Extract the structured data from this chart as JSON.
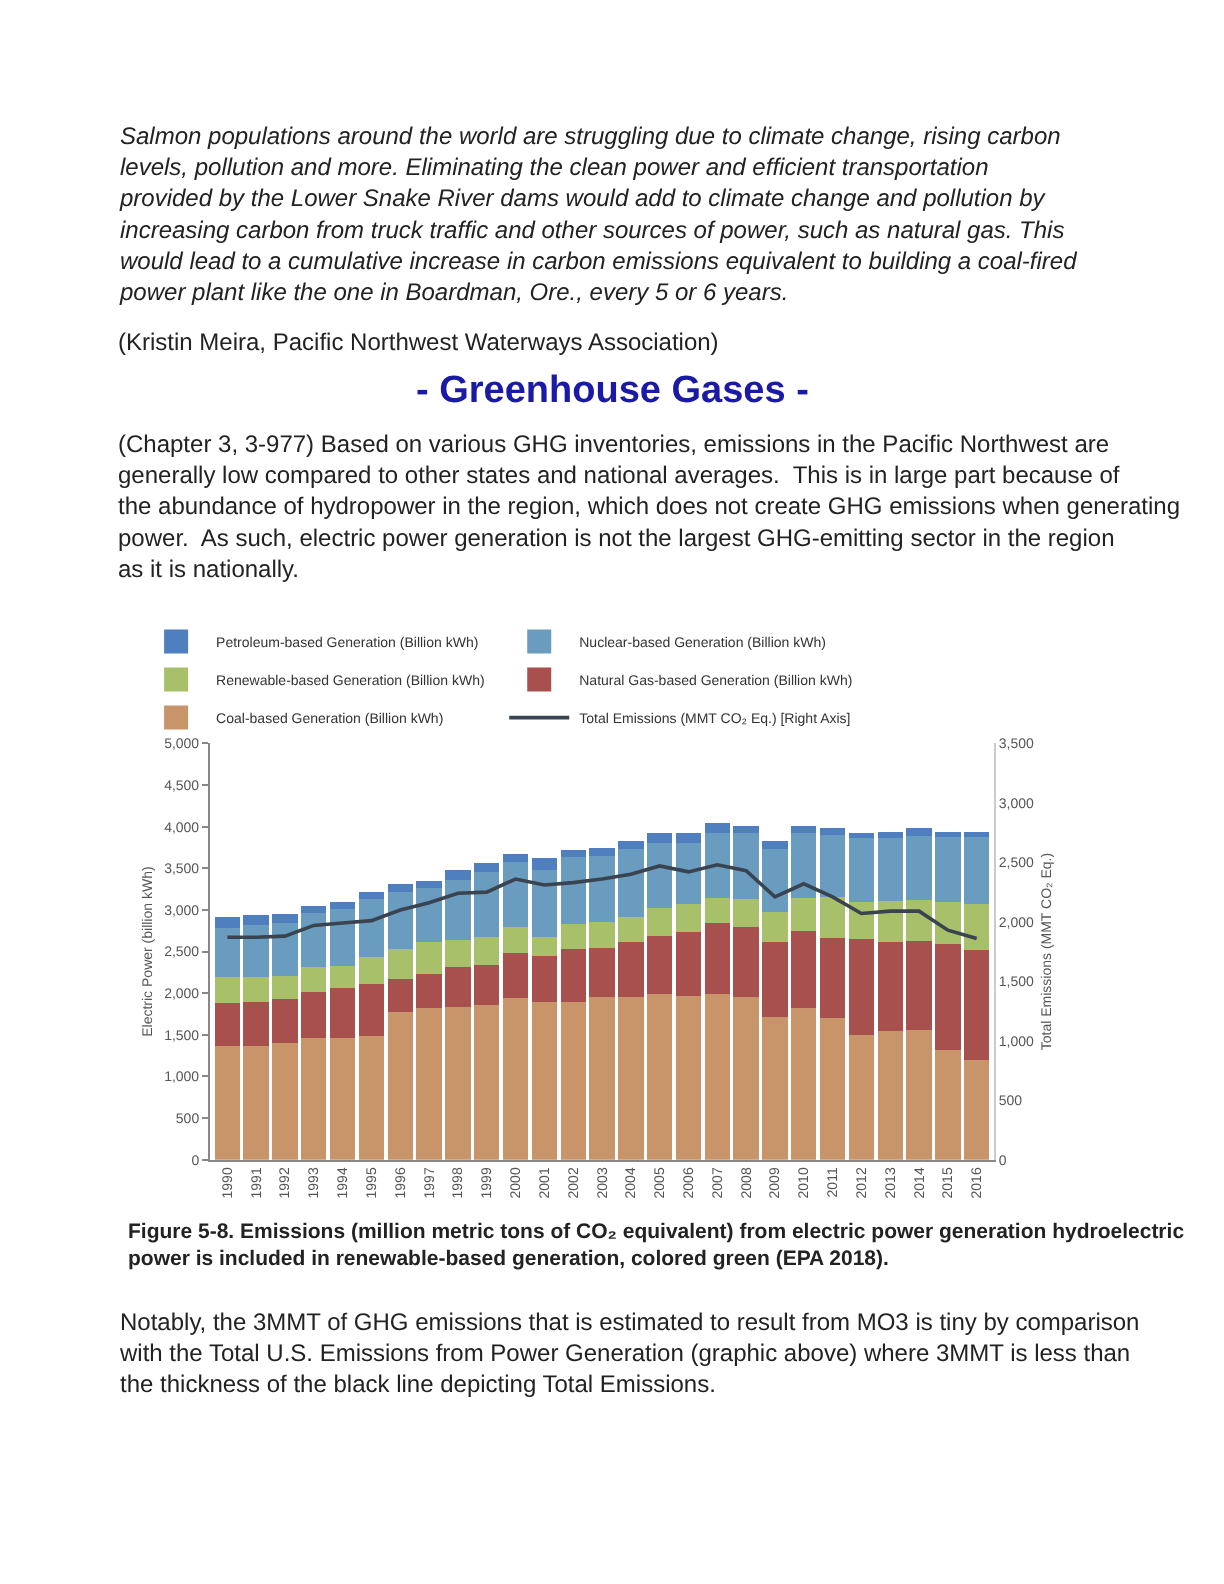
{
  "chart_data": {
    "type": "bar",
    "stacked": true,
    "categories": [
      "1990",
      "1991",
      "1992",
      "1993",
      "1994",
      "1995",
      "1996",
      "1997",
      "1998",
      "1999",
      "2000",
      "2001",
      "2002",
      "2003",
      "2004",
      "2005",
      "2006",
      "2007",
      "2008",
      "2009",
      "2010",
      "2011",
      "2012",
      "2013",
      "2014",
      "2015",
      "2016"
    ],
    "series": [
      {
        "name": "Coal-based Generation (Billion kWh)",
        "color": "#c8956a",
        "values": [
          1370,
          1370,
          1400,
          1460,
          1460,
          1490,
          1770,
          1820,
          1840,
          1860,
          1940,
          1890,
          1900,
          1950,
          1950,
          1990,
          1970,
          1990,
          1960,
          1720,
          1820,
          1700,
          1500,
          1550,
          1560,
          1320,
          1200
        ]
      },
      {
        "name": "Natural Gas-based Generation (Billion kWh)",
        "color": "#a8504e",
        "values": [
          510,
          520,
          530,
          550,
          600,
          620,
          400,
          410,
          470,
          480,
          540,
          560,
          630,
          590,
          660,
          700,
          760,
          850,
          840,
          890,
          930,
          960,
          1150,
          1070,
          1070,
          1270,
          1320
        ]
      },
      {
        "name": "Renewable-based Generation (Billion kWh)",
        "color": "#a9c06a",
        "values": [
          320,
          310,
          280,
          300,
          270,
          330,
          360,
          380,
          330,
          340,
          310,
          230,
          300,
          320,
          300,
          330,
          340,
          300,
          330,
          360,
          390,
          500,
          450,
          490,
          490,
          500,
          550
        ]
      },
      {
        "name": "Nuclear-based Generation (Billion kWh)",
        "color": "#6a9cc0",
        "values": [
          580,
          620,
          630,
          650,
          680,
          690,
          690,
          650,
          720,
          780,
          790,
          800,
          800,
          790,
          820,
          790,
          740,
          790,
          790,
          760,
          780,
          740,
          760,
          760,
          770,
          790,
          810
        ]
      },
      {
        "name": "Petroleum-based Generation (Billion kWh)",
        "color": "#4f7fbf",
        "values": [
          140,
          120,
          110,
          90,
          90,
          80,
          90,
          90,
          120,
          100,
          90,
          140,
          90,
          100,
          100,
          120,
          120,
          110,
          90,
          100,
          90,
          90,
          70,
          70,
          90,
          60,
          60
        ]
      },
      {
        "name": "Total Emissions (MMT CO₂ Eq.) [Right Axis]",
        "type": "line",
        "axis": "y2",
        "color": "#3a4450",
        "values": [
          1870,
          1870,
          1880,
          1970,
          1990,
          2010,
          2100,
          2160,
          2240,
          2250,
          2360,
          2310,
          2330,
          2360,
          2400,
          2470,
          2420,
          2480,
          2430,
          2210,
          2320,
          2210,
          2070,
          2090,
          2090,
          1930,
          1860
        ]
      }
    ],
    "ylabel": "Electric Power (billion kWh)",
    "y2label": "Total Emissions (MMT CO₂ Eq.)",
    "ylim": [
      0,
      5000
    ],
    "yticks": [
      0,
      500,
      {
        "value": 1000,
        "label": "1,000"
      },
      {
        "value": 1500,
        "label": "1,500"
      },
      {
        "value": 2000,
        "label": "2,000"
      },
      {
        "value": 2500,
        "label": "2,500"
      },
      {
        "value": 3000,
        "label": "3,000"
      },
      {
        "value": 3500,
        "label": "3,500"
      },
      {
        "value": 4000,
        "label": "4,000"
      },
      {
        "value": 4500,
        "label": "4,500"
      },
      {
        "value": 5000,
        "label": "5,000"
      }
    ],
    "y2lim": [
      0,
      3500
    ],
    "y2ticks": [
      0,
      500,
      {
        "value": 1000,
        "label": "1,000"
      },
      {
        "value": 1500,
        "label": "1,500"
      },
      {
        "value": 2000,
        "label": "2,000"
      },
      {
        "value": 2500,
        "label": "2,500"
      },
      {
        "value": 3000,
        "label": "3,000"
      },
      {
        "value": 3500,
        "label": "3,500"
      }
    ],
    "legend": "top left",
    "marker": "none",
    "annotations": [
      "Salmon populations around the world are struggling due to climate change, rising carbon levels, pollution and more. Eliminating the clean power and efficient transportation provided by the Lower Snake River dams would add to climate change and pollution by increasing carbon from truck traffic and other sources of power, such as natural gas. This would lead to a cumulative increase in carbon emissions equivalent to building a coal-fired power plant like the one in Boardman, Ore., every 5 or 6 years.",
      "(Kristin Meira, Pacific Northwest Waterways Association)",
      "- Greenhouse Gases -",
      "(Chapter 3, 3-977) Based on various GHG inventories, emissions in the Pacific Northwest are generally low compared to other states and national averages.  This is in large part because of the abundance of hydropower in the region, which does not create GHG emissions when generating power.  As such, electric power generation is not the largest GHG-emitting sector in the region as it is nationally.",
      "Figure 5-8. Emissions (million metric tons of CO₂ equivalent) from electric power generation hydroelectric power is included in renewable-based generation, colored green (EPA 2018).",
      "Notably, the 3MMT of GHG emissions that is estimated to result from MO3 is tiny by comparison with the Total U.S. Emissions from Power Generation (graphic above) where 3MMT is less than the thickness of the black line depicting Total Emissions."
    ]
  }
}
